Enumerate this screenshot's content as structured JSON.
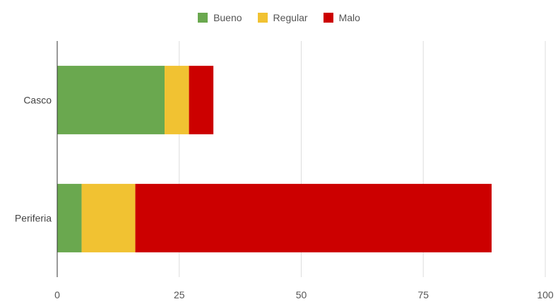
{
  "chart_data": {
    "type": "bar",
    "orientation": "horizontal",
    "stacked": true,
    "categories": [
      "Casco",
      "Periferia"
    ],
    "series": [
      {
        "name": "Bueno",
        "color": "#6aa84f",
        "values": [
          22,
          5
        ]
      },
      {
        "name": "Regular",
        "color": "#f1c232",
        "values": [
          5,
          11
        ]
      },
      {
        "name": "Malo",
        "color": "#cc0000",
        "values": [
          5,
          73
        ]
      }
    ],
    "xlim": [
      0,
      100
    ],
    "x_ticks": [
      "0",
      "25",
      "50",
      "75",
      "100"
    ],
    "grid": true,
    "legend_position": "top-center"
  }
}
